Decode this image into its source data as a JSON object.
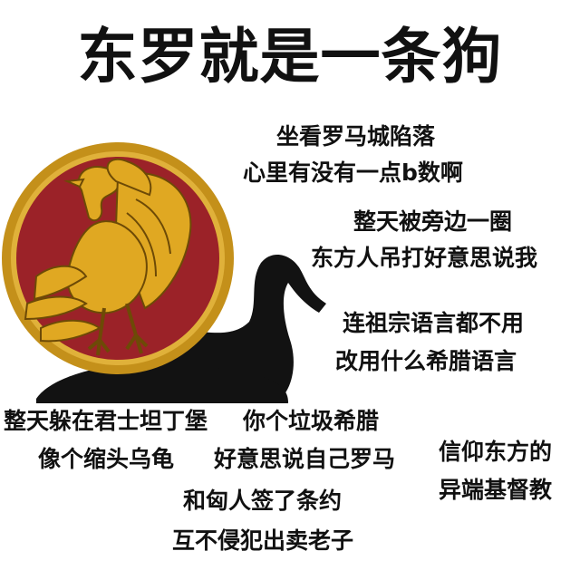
{
  "title": "东罗就是一条狗",
  "text_blocks": [
    "坐看罗马城陷落",
    "心里有没有一点b数啊",
    "整天被旁边一圈",
    "东方人吊打好意思说我",
    "连祖宗语言都不用",
    "改用什么希腊语言",
    "整天躲在君士坦丁堡",
    "像个缩头乌龟",
    "你个垃圾希腊",
    "好意思说自己罗马",
    "信仰东方的",
    "异端基督教",
    "和匈人签了条约",
    "互不侵犯出卖老子"
  ],
  "colors": {
    "emblem_red": "#9b2228",
    "emblem_gold": "#d8a21c",
    "silhouette": "#121212"
  }
}
